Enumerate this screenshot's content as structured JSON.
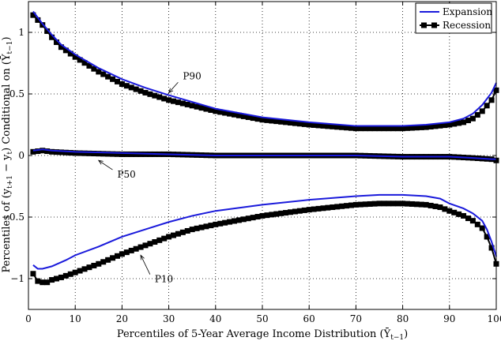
{
  "chart_data": {
    "type": "line",
    "xlabel": "Percentiles of 5-Year Average Income Distribution (Ȳ",
    "xlabel_sub": "t−1",
    "xlabel_close": ")",
    "ylabel": "Percentiles of (y",
    "ylabel_sub1": "t+1",
    "ylabel_mid": " − y",
    "ylabel_sub2": "t",
    "ylabel_tail": ") Conditional on (Ȳ",
    "ylabel_sub3": "t−1",
    "ylabel_close": ")",
    "xlim": [
      0,
      100
    ],
    "ylim": [
      -1.25,
      1.25
    ],
    "xticks": [
      0,
      10,
      20,
      30,
      40,
      50,
      60,
      70,
      80,
      90,
      100
    ],
    "yticks": [
      -1,
      -0.5,
      0,
      0.5,
      1
    ],
    "ytick_labels": [
      "−1",
      "−0.5",
      "0",
      "0.5",
      "1"
    ],
    "grid": "dotted",
    "legend": "top-right",
    "colors": {
      "expansion": "#1a1adb",
      "recession": "#000000"
    },
    "series": [
      {
        "name": "Expansion",
        "style": "line",
        "group": "P90",
        "x": [
          1,
          3,
          5,
          7,
          10,
          15,
          20,
          25,
          30,
          40,
          50,
          60,
          70,
          80,
          85,
          90,
          93,
          95,
          97,
          99,
          100
        ],
        "values": [
          1.17,
          1.07,
          0.98,
          0.9,
          0.82,
          0.71,
          0.62,
          0.55,
          0.49,
          0.38,
          0.31,
          0.27,
          0.24,
          0.24,
          0.25,
          0.27,
          0.3,
          0.34,
          0.41,
          0.51,
          0.59
        ]
      },
      {
        "name": "Expansion",
        "style": "line",
        "group": "P50",
        "x": [
          1,
          3,
          5,
          10,
          20,
          30,
          40,
          50,
          60,
          70,
          80,
          90,
          95,
          99,
          100
        ],
        "values": [
          0.04,
          0.05,
          0.04,
          0.03,
          0.02,
          0.01,
          0.0,
          0.0,
          0.0,
          0.0,
          -0.01,
          -0.01,
          -0.02,
          -0.03,
          -0.03
        ]
      },
      {
        "name": "Expansion",
        "style": "line",
        "group": "P10",
        "x": [
          1,
          2,
          3,
          5,
          8,
          10,
          15,
          20,
          25,
          30,
          35,
          40,
          50,
          60,
          70,
          75,
          80,
          85,
          88,
          90,
          93,
          95,
          97,
          98,
          99,
          100
        ],
        "values": [
          -0.89,
          -0.92,
          -0.92,
          -0.9,
          -0.85,
          -0.81,
          -0.74,
          -0.66,
          -0.6,
          -0.54,
          -0.49,
          -0.45,
          -0.4,
          -0.36,
          -0.33,
          -0.32,
          -0.32,
          -0.33,
          -0.35,
          -0.39,
          -0.43,
          -0.47,
          -0.53,
          -0.6,
          -0.7,
          -0.82
        ]
      },
      {
        "name": "Recession",
        "style": "line-square-markers",
        "group": "P90",
        "x": [
          1,
          3,
          5,
          7,
          10,
          15,
          20,
          25,
          30,
          40,
          50,
          60,
          70,
          80,
          85,
          90,
          93,
          95,
          97,
          99,
          100
        ],
        "values": [
          1.14,
          1.06,
          0.96,
          0.88,
          0.8,
          0.68,
          0.58,
          0.51,
          0.45,
          0.36,
          0.29,
          0.25,
          0.22,
          0.22,
          0.23,
          0.25,
          0.27,
          0.3,
          0.36,
          0.45,
          0.53
        ]
      },
      {
        "name": "Recession",
        "style": "line-square-markers",
        "group": "P50",
        "x": [
          1,
          3,
          5,
          10,
          20,
          30,
          40,
          50,
          60,
          70,
          80,
          90,
          95,
          99,
          100
        ],
        "values": [
          0.03,
          0.04,
          0.03,
          0.02,
          0.01,
          0.01,
          0.0,
          0.0,
          0.0,
          0.0,
          -0.01,
          -0.01,
          -0.02,
          -0.03,
          -0.04
        ]
      },
      {
        "name": "Recession",
        "style": "line-square-markers",
        "group": "P10",
        "x": [
          1,
          2,
          3,
          4,
          5,
          7,
          10,
          15,
          20,
          25,
          30,
          35,
          40,
          50,
          60,
          70,
          75,
          80,
          85,
          88,
          90,
          93,
          95,
          97,
          98,
          99,
          100
        ],
        "values": [
          -0.96,
          -1.02,
          -1.03,
          -1.03,
          -1.01,
          -0.99,
          -0.95,
          -0.88,
          -0.8,
          -0.73,
          -0.66,
          -0.6,
          -0.56,
          -0.49,
          -0.44,
          -0.4,
          -0.39,
          -0.39,
          -0.4,
          -0.42,
          -0.45,
          -0.49,
          -0.53,
          -0.59,
          -0.66,
          -0.75,
          -0.88
        ]
      }
    ],
    "annotations": [
      {
        "text": "P90",
        "x": 33,
        "y": 0.62,
        "arrow_to": [
          30,
          0.51
        ]
      },
      {
        "text": "P50",
        "x": 19,
        "y": -0.18,
        "arrow_to": [
          15,
          -0.04
        ]
      },
      {
        "text": "P10",
        "x": 27,
        "y": -1.03,
        "arrow_to": [
          24,
          -0.81
        ]
      }
    ],
    "legend_entries": [
      {
        "label": "Expansion",
        "series": "Expansion"
      },
      {
        "label": "Recession",
        "series": "Recession"
      }
    ]
  }
}
